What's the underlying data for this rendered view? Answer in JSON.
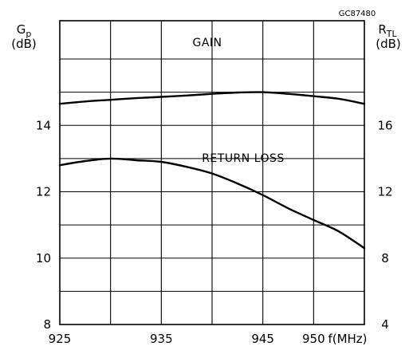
{
  "chart_data": {
    "type": "line",
    "figure_code": "GC87480",
    "x_axis": {
      "label": "f(MHz)",
      "range": [
        925,
        955
      ],
      "ticks": [
        925,
        935,
        945,
        950
      ],
      "tick_labels": [
        "925",
        "935",
        "945",
        "950"
      ]
    },
    "y_left": {
      "label_symbol": "G",
      "label_subscript": "p",
      "label_unit": "(dB)",
      "range": [
        8,
        16
      ],
      "ticks": [
        8,
        10,
        12,
        14
      ],
      "tick_labels": [
        "8",
        "10",
        "12",
        "14"
      ]
    },
    "y_right": {
      "label_symbol": "R",
      "label_subscript": "TL",
      "label_unit": "(dB)",
      "range": [
        4,
        20
      ],
      "ticks": [
        4,
        8,
        12,
        16
      ],
      "tick_labels": [
        "4",
        "8",
        "12",
        "16"
      ]
    },
    "grid": true,
    "series": [
      {
        "name": "GAIN",
        "axis": "left",
        "x": [
          925,
          927.5,
          930,
          932.5,
          935,
          937.5,
          940,
          942.5,
          945,
          947.5,
          950,
          952.5,
          955
        ],
        "y": [
          14.65,
          14.72,
          14.77,
          14.82,
          14.86,
          14.9,
          14.95,
          14.99,
          15.0,
          14.95,
          14.88,
          14.8,
          14.65
        ]
      },
      {
        "name": "RETURN LOSS",
        "axis": "right",
        "x": [
          925,
          927.5,
          930,
          932.5,
          935,
          937.5,
          940,
          942.5,
          945,
          947.5,
          950,
          952.5,
          955
        ],
        "y": [
          13.6,
          13.85,
          14.0,
          13.9,
          13.8,
          13.5,
          13.1,
          12.5,
          11.8,
          11.0,
          10.3,
          9.6,
          8.6
        ]
      }
    ]
  }
}
